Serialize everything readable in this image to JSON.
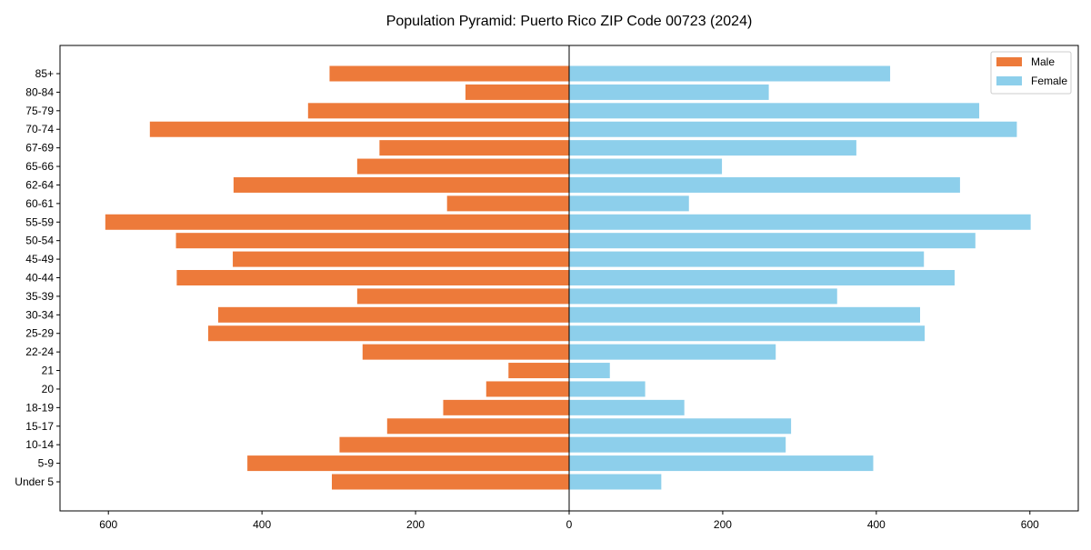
{
  "chart_data": {
    "type": "bar",
    "orientation": "horizontal",
    "title": "Population Pyramid: Puerto Rico ZIP Code 00723 (2024)",
    "xlabel": "",
    "ylabel": "",
    "xlim": [
      -663,
      663
    ],
    "xticks": [
      -600,
      -400,
      -200,
      0,
      200,
      400,
      600
    ],
    "xtick_labels": [
      "600",
      "400",
      "200",
      "0",
      "200",
      "400",
      "600"
    ],
    "legend_position": "top-right",
    "categories": [
      "85+",
      "80-84",
      "75-79",
      "70-74",
      "67-69",
      "65-66",
      "62-64",
      "60-61",
      "55-59",
      "50-54",
      "45-49",
      "40-44",
      "35-39",
      "30-34",
      "25-29",
      "22-24",
      "21",
      "20",
      "18-19",
      "15-17",
      "10-14",
      "5-9",
      "Under 5"
    ],
    "series": [
      {
        "name": "Male",
        "color": "#ED7A3A",
        "values": [
          312,
          135,
          340,
          546,
          247,
          276,
          437,
          159,
          604,
          512,
          438,
          511,
          276,
          457,
          470,
          269,
          79,
          108,
          164,
          237,
          299,
          419,
          309
        ]
      },
      {
        "name": "Female",
        "color": "#8DCFEB",
        "values": [
          418,
          260,
          534,
          583,
          374,
          199,
          509,
          156,
          601,
          529,
          462,
          502,
          349,
          457,
          463,
          269,
          53,
          99,
          150,
          289,
          282,
          396,
          120
        ]
      }
    ]
  }
}
